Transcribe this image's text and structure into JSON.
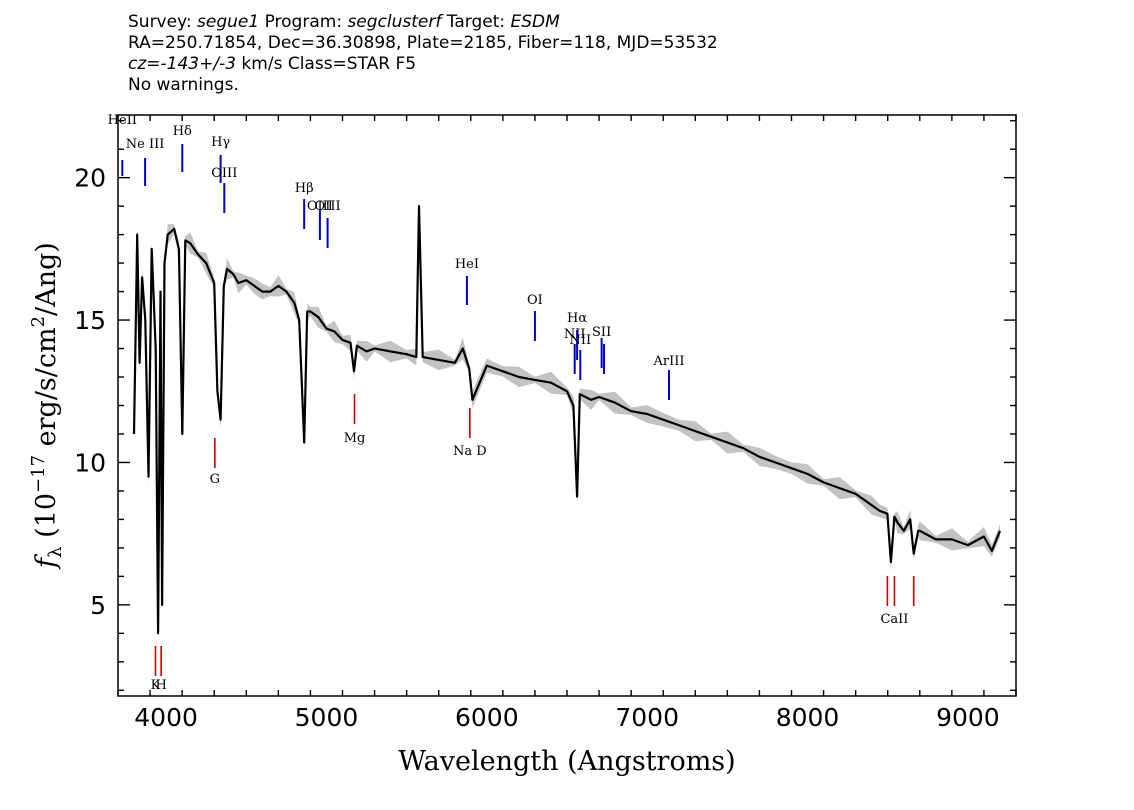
{
  "header": {
    "l1_survey_label": "Survey: ",
    "l1_survey": "segue1",
    "l1_program_label": " Program: ",
    "l1_program": "segclusterf",
    "l1_target_label": " Target: ",
    "l1_target": "ESDM",
    "l2": "RA=250.71854, Dec=36.30898, Plate=2185, Fiber=118, MJD=53532",
    "l3_cz": "cz=-143+/-3",
    "l3_rest": " km/s Class=STAR F5",
    "l4": "No warnings."
  },
  "chart_data": {
    "type": "line",
    "xlabel": "Wavelength (Angstroms)",
    "ylabel": "f_λ (10^-17 erg/s/cm^2/Ang)",
    "xlim": [
      3700,
      9300
    ],
    "ylim": [
      1.8,
      22.2
    ],
    "x_ticks": [
      4000,
      5000,
      6000,
      7000,
      8000,
      9000
    ],
    "y_ticks": [
      5,
      10,
      15,
      20
    ],
    "grid": false,
    "colors": {
      "spectrum": "#000000",
      "error": "#bdbdbd",
      "emission": "#0000cc",
      "absorption": "#cc0000"
    },
    "series": [
      {
        "x": [
          3800,
          3820,
          3835,
          3850,
          3870,
          3890,
          3910,
          3935,
          3950,
          3965,
          3975,
          3990,
          4010,
          4050,
          4080,
          4101,
          4120,
          4150,
          4200,
          4250,
          4300,
          4320,
          4340,
          4360,
          4380,
          4420,
          4450,
          4500,
          4550,
          4600,
          4650,
          4700,
          4750,
          4800,
          4830,
          4861,
          4880,
          4900,
          4950,
          5000,
          5050,
          5100,
          5150,
          5172,
          5190,
          5250,
          5300,
          5400,
          5500,
          5560,
          5577,
          5600,
          5700,
          5800,
          5850,
          5890,
          5910,
          6000,
          6100,
          6200,
          6300,
          6400,
          6500,
          6540,
          6563,
          6580,
          6650,
          6700,
          6800,
          6900,
          7000,
          7100,
          7200,
          7300,
          7400,
          7500,
          7600,
          7700,
          7800,
          7900,
          8000,
          8100,
          8200,
          8300,
          8400,
          8450,
          8498,
          8520,
          8542,
          8560,
          8600,
          8640,
          8662,
          8690,
          8700,
          8800,
          8900,
          9000,
          9100,
          9150,
          9200
        ],
        "y": [
          11,
          18,
          13.5,
          16.5,
          15,
          9.5,
          17.5,
          14,
          4,
          16,
          5,
          17,
          18,
          18.2,
          17.5,
          11,
          17.8,
          17.7,
          17.3,
          17,
          16.3,
          12.5,
          11.5,
          16.2,
          16.8,
          16.6,
          16.3,
          16.4,
          16.2,
          16,
          16,
          16.2,
          16,
          15.6,
          15,
          10.7,
          15.3,
          15.3,
          15.1,
          14.7,
          14.6,
          14.3,
          14.2,
          13.2,
          14.1,
          13.9,
          14,
          13.9,
          13.8,
          13.7,
          19,
          13.7,
          13.6,
          13.5,
          14,
          13.3,
          12.2,
          13.4,
          13.2,
          13,
          12.9,
          12.8,
          12.5,
          12,
          8.8,
          12.4,
          12.2,
          12.3,
          12.1,
          11.8,
          11.7,
          11.5,
          11.3,
          11.1,
          10.9,
          10.7,
          10.5,
          10.2,
          10,
          9.8,
          9.6,
          9.3,
          9.1,
          8.9,
          8.5,
          8.3,
          8.2,
          6.5,
          8.1,
          7.9,
          7.6,
          8,
          6.8,
          7.6,
          7.6,
          7.3,
          7.3,
          7.1,
          7.4,
          6.9,
          7.6
        ]
      }
    ],
    "emission_lines": [
      {
        "label": "HeII",
        "x": 3727
      },
      {
        "label": "Ne III",
        "x": 3869
      },
      {
        "label": "Hδ",
        "x": 4101
      },
      {
        "label": "Hγ",
        "x": 4340
      },
      {
        "label": "OIII",
        "x": 4363
      },
      {
        "label": "Hβ",
        "x": 4861
      },
      {
        "label": "OIII",
        "x": 4959
      },
      {
        "label": "OIII",
        "x": 5007
      },
      {
        "label": "HeI",
        "x": 5876
      },
      {
        "label": "OI",
        "x": 6300
      },
      {
        "label": "NII",
        "x": 6548
      },
      {
        "label": "Hα",
        "x": 6563
      },
      {
        "label": "NII",
        "x": 6583
      },
      {
        "label": "SII",
        "x": 6716
      },
      {
        "label": "SII",
        "x": 6731
      },
      {
        "label": "ArIII",
        "x": 7136
      }
    ],
    "absorption_lines": [
      {
        "label": "K",
        "x": 3934
      },
      {
        "label": "H",
        "x": 3969
      },
      {
        "label": "G",
        "x": 4304
      },
      {
        "label": "Mg",
        "x": 5175
      },
      {
        "label": "Na D",
        "x": 5894
      },
      {
        "label": "CaII",
        "x": 8498
      },
      {
        "label": "CaII",
        "x": 8542
      },
      {
        "label": "CaII",
        "x": 8662
      }
    ]
  }
}
